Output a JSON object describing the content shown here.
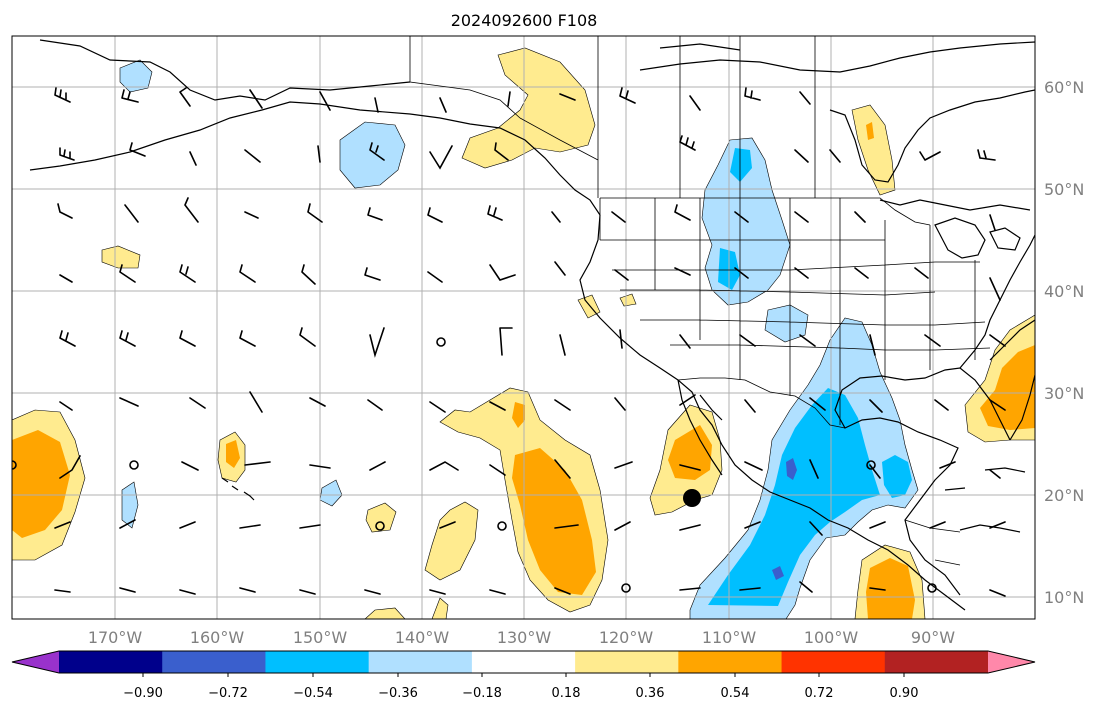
{
  "title": "2024092600 F108",
  "map": {
    "lon_labels": [
      "170°W",
      "160°W",
      "150°W",
      "140°W",
      "130°W",
      "120°W",
      "110°W",
      "100°W",
      "90°W"
    ],
    "lat_labels": [
      "60°N",
      "50°N",
      "40°N",
      "30°N",
      "20°N",
      "10°N"
    ],
    "colors": {
      "neg_light": "#b0e0ff",
      "neg_mid": "#00bfff",
      "neg_strong": "#3a5fcd",
      "pos_light": "#ffeb8f",
      "pos_mid": "#ffa500",
      "marker": "#000000"
    }
  },
  "colorbar": {
    "tick_labels": [
      "−0.90",
      "−0.72",
      "−0.54",
      "−0.36",
      "−0.18",
      "0.18",
      "0.36",
      "0.54",
      "0.72",
      "0.90"
    ],
    "colors": [
      "#9932cc",
      "#00008b",
      "#3a5fcd",
      "#00bfff",
      "#b0e0ff",
      "#ffffff",
      "#ffeb8f",
      "#ffa500",
      "#ff3300",
      "#b22222",
      "#ff88aa"
    ]
  }
}
